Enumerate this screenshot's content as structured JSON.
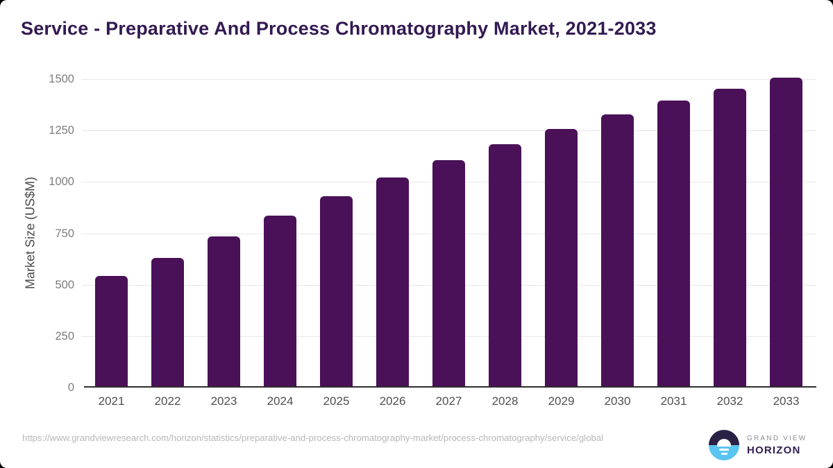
{
  "page": {
    "source_url": "https://www.grandviewresearch.com/horizon/statistics/preparative-and-process-chromatography-market/process-chromatography/service/global"
  },
  "logo": {
    "brand_top": "GRAND VIEW",
    "brand_bottom": "HORIZON"
  },
  "colors": {
    "bar": "#4a1158",
    "title": "#331a52",
    "gridline": "#e7e7e7",
    "axis_line": "#2d2d2d",
    "y_tick_label": "#7c7c7c",
    "x_tick_label": "#4f4f4f",
    "url_text": "#b7b7b7",
    "logo_navy": "#2b2145",
    "logo_blue": "#5ac4f2"
  },
  "chart_data": {
    "type": "bar",
    "title": "Service - Preparative And Process Chromatography Market, 2021-2033",
    "categories": [
      "2021",
      "2022",
      "2023",
      "2024",
      "2025",
      "2026",
      "2027",
      "2028",
      "2029",
      "2030",
      "2031",
      "2032",
      "2033"
    ],
    "values": [
      544,
      632,
      736,
      835,
      931,
      1022,
      1104,
      1184,
      1258,
      1328,
      1396,
      1452,
      1508
    ],
    "xlabel": "",
    "ylabel": "Market Size (US$M)",
    "ylim": [
      0,
      1500
    ],
    "yticks": [
      0,
      250,
      500,
      750,
      1000,
      1250,
      1500
    ],
    "grid": true,
    "legend": false,
    "bar_color": "#4a1158"
  }
}
